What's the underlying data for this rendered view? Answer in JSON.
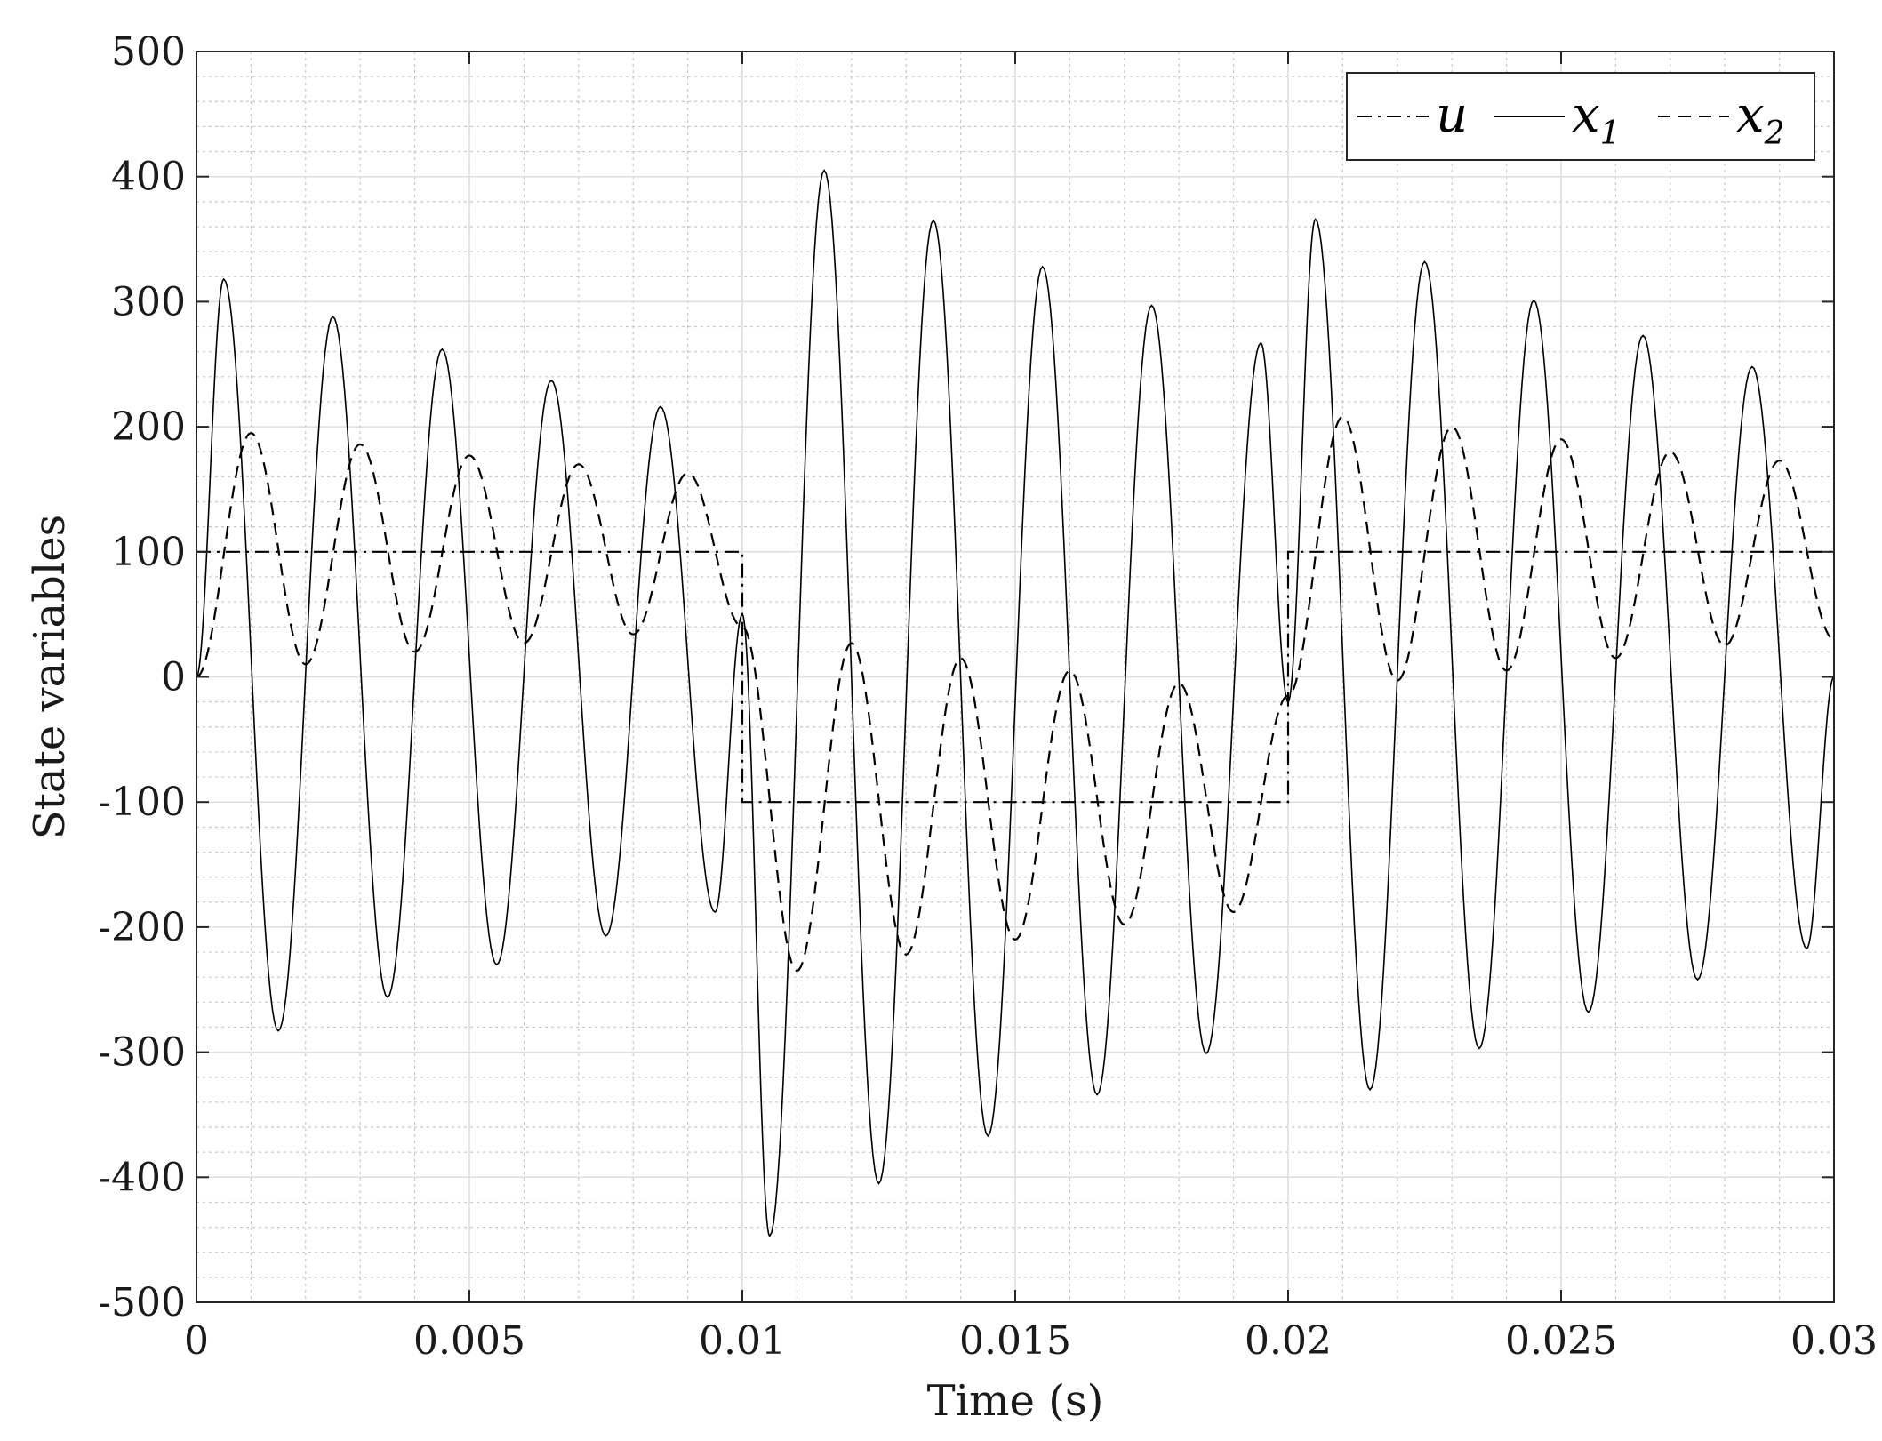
{
  "chart_data": {
    "type": "line",
    "title": "",
    "xlabel": "Time (s)",
    "ylabel": "State variables",
    "xlim": [
      0,
      0.03
    ],
    "ylim": [
      -500,
      500
    ],
    "x_ticks": [
      0,
      0.005,
      0.01,
      0.015,
      0.02,
      0.025,
      0.03
    ],
    "x_tick_labels": [
      "0",
      "0.005",
      "0.01",
      "0.015",
      "0.02",
      "0.025",
      "0.03"
    ],
    "y_ticks": [
      -500,
      -400,
      -300,
      -200,
      -100,
      0,
      100,
      200,
      300,
      400,
      500
    ],
    "y_tick_labels": [
      "-500",
      "-400",
      "-300",
      "-200",
      "-100",
      "0",
      "100",
      "200",
      "300",
      "400",
      "500"
    ],
    "grid": "on (major and minor)",
    "legend_position": "top-right",
    "legend_orientation": "horizontal",
    "series": [
      {
        "name": "u",
        "legend_label": "u",
        "line_style": "dash-dot",
        "x": [
          0,
          0.01,
          0.01,
          0.02,
          0.02,
          0.03
        ],
        "y": [
          100,
          100,
          -100,
          -100,
          100,
          100
        ]
      },
      {
        "name": "x1",
        "legend_label": "x",
        "legend_subscript": "1",
        "line_style": "solid",
        "x": [
          0,
          0.0005,
          0.0015,
          0.0025,
          0.0035,
          0.0045,
          0.0055,
          0.0065,
          0.0075,
          0.0085,
          0.0095,
          0.01,
          0.0105,
          0.0115,
          0.0125,
          0.0135,
          0.0145,
          0.0155,
          0.0165,
          0.0175,
          0.0185,
          0.0195,
          0.02,
          0.0205,
          0.0215,
          0.0225,
          0.0235,
          0.0245,
          0.0255,
          0.0265,
          0.0275,
          0.0285,
          0.0295,
          0.03
        ],
        "y": [
          0,
          318,
          -283,
          288,
          -256,
          262,
          -230,
          237,
          -207,
          216,
          -188,
          50,
          -447,
          405,
          -405,
          365,
          -367,
          328,
          -334,
          297,
          -301,
          267,
          -20,
          366,
          -330,
          332,
          -297,
          301,
          -268,
          273,
          -242,
          248,
          -217,
          0
        ]
      },
      {
        "name": "x2",
        "legend_label": "x",
        "legend_subscript": "2",
        "line_style": "dashed",
        "x": [
          0,
          0.001,
          0.002,
          0.003,
          0.004,
          0.005,
          0.006,
          0.007,
          0.008,
          0.009,
          0.01,
          0.011,
          0.012,
          0.013,
          0.014,
          0.015,
          0.016,
          0.017,
          0.018,
          0.019,
          0.02,
          0.021,
          0.022,
          0.023,
          0.024,
          0.025,
          0.026,
          0.027,
          0.028,
          0.029,
          0.03
        ],
        "y": [
          0,
          195,
          10,
          186,
          20,
          177,
          27,
          170,
          34,
          163,
          40,
          -235,
          27,
          -222,
          15,
          -210,
          5,
          -198,
          -5,
          -188,
          -15,
          208,
          -3,
          200,
          5,
          190,
          15,
          180,
          25,
          173,
          30
        ]
      }
    ]
  }
}
